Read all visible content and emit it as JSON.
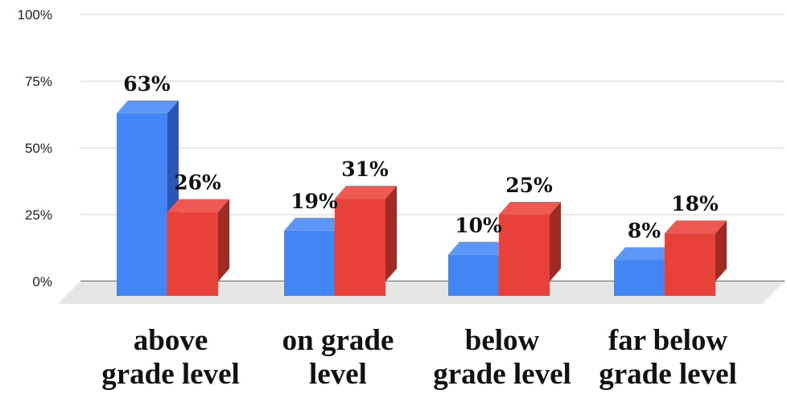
{
  "chart_data": {
    "type": "bar",
    "categories": [
      [
        "above",
        "grade level"
      ],
      [
        "on grade",
        "level"
      ],
      [
        "below",
        "grade level"
      ],
      [
        "far below",
        "grade level"
      ]
    ],
    "series": [
      {
        "values": [
          63,
          19,
          10,
          8
        ],
        "labels": [
          "63%",
          "19%",
          "10%",
          "8%"
        ],
        "color": "#4285f4",
        "side_color": "#2a56b8",
        "top_color": "#5a97f6"
      },
      {
        "values": [
          26,
          31,
          25,
          18
        ],
        "labels": [
          "26%",
          "31%",
          "25%",
          "18%"
        ],
        "color": "#e8413a",
        "side_color": "#a02b24",
        "top_color": "#ee5a52"
      }
    ],
    "yticks": [
      0,
      25,
      50,
      75,
      100
    ],
    "ytick_labels": [
      "0%",
      "25%",
      "50%",
      "75%",
      "100%"
    ],
    "ylim": [
      0,
      100
    ],
    "grid": true,
    "legend": "none",
    "style": "3d-columns"
  }
}
